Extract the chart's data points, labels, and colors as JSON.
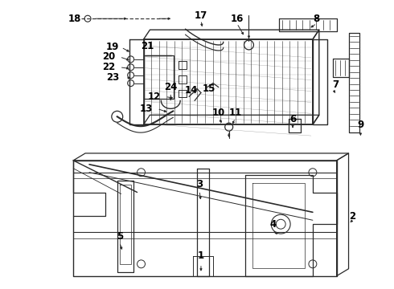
{
  "background_color": "#ffffff",
  "line_color": "#2a2a2a",
  "label_color": "#000000",
  "fig_width": 4.9,
  "fig_height": 3.6,
  "dpi": 100,
  "font_size": 8.5
}
